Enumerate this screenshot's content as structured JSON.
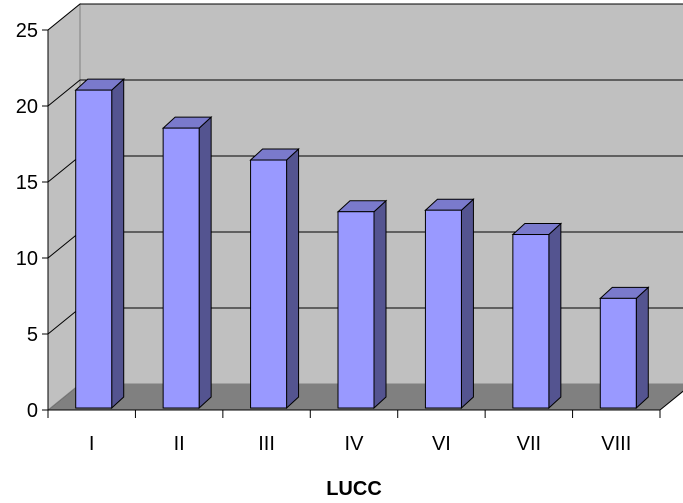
{
  "chart_data": {
    "type": "bar",
    "title": "",
    "xlabel": "LUCC",
    "ylabel": "",
    "categories": [
      "I",
      "II",
      "III",
      "IV",
      "VI",
      "VII",
      "VIII"
    ],
    "values": [
      20.9,
      18.4,
      16.3,
      12.9,
      13.0,
      11.4,
      7.2
    ],
    "ylim": [
      0,
      25
    ],
    "yticks": [
      "0",
      "5",
      "10",
      "15",
      "20",
      "25"
    ],
    "grid": true,
    "legend": "none",
    "colors": {
      "bar_front": "#9999ff",
      "bar_side": "#545490",
      "bar_top": "#7a7acc",
      "wall": "#c0c0c0",
      "floor": "#808080",
      "gridline": "#000000"
    }
  }
}
